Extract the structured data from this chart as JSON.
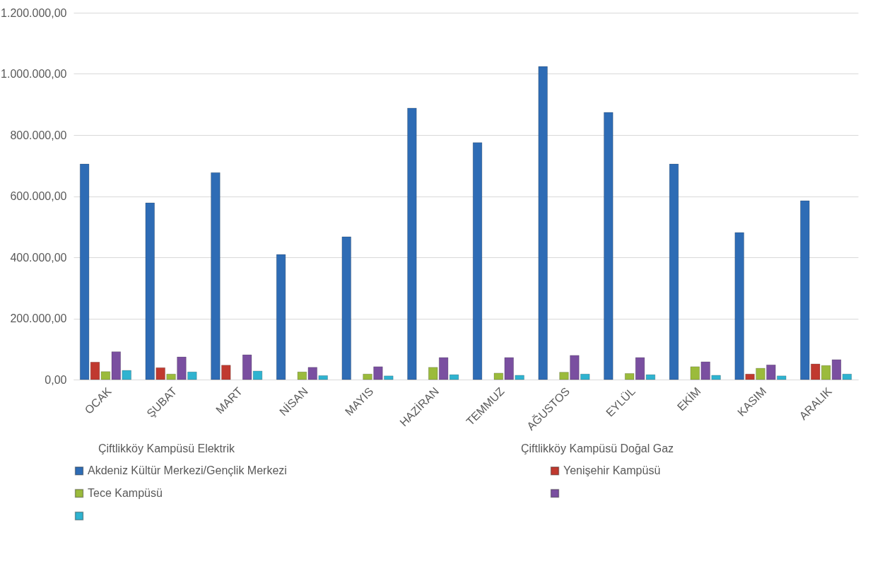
{
  "chart_data": {
    "type": "bar",
    "categories": [
      "OCAK",
      "ŞUBAT",
      "MART",
      "NİSAN",
      "MAYIS",
      "HAZİRAN",
      "TEMMUZ",
      "AĞUSTOS",
      "EYLÜL",
      "EKİM",
      "KASIM",
      "ARALIK"
    ],
    "series": [
      {
        "name": "Akdeniz Kültür Merkezi/Gençlik Merkezi",
        "color": "#2e6cb5",
        "values": [
          705000,
          578000,
          677000,
          409000,
          467000,
          888000,
          775000,
          1024000,
          874000,
          705000,
          481000,
          585000
        ]
      },
      {
        "name": "Yenişehir Kampüsü",
        "color": "#c0392f",
        "values": [
          57000,
          39000,
          47000,
          null,
          null,
          null,
          null,
          null,
          null,
          null,
          18000,
          51000
        ]
      },
      {
        "name": "Tece Kampüsü",
        "color": "#9bbb3c",
        "values": [
          26000,
          18000,
          null,
          25000,
          18000,
          40000,
          21000,
          24000,
          20000,
          42000,
          37000,
          46000
        ]
      },
      {
        "color": "#7a4fa0",
        "values": [
          91000,
          74000,
          81000,
          40000,
          42000,
          72000,
          72000,
          79000,
          72000,
          58000,
          48000,
          65000
        ]
      },
      {
        "color": "#2fb3d0",
        "values": [
          30000,
          25000,
          28000,
          13000,
          12000,
          16000,
          14000,
          18000,
          16000,
          14000,
          12000,
          18000
        ]
      }
    ],
    "annotations": [
      "Çiftlikköy Kampüsü Elektrik",
      "Çiftlikköy Kampüsü Doğal Gaz"
    ],
    "ylim": [
      0,
      1200000
    ],
    "yticks": [
      {
        "value": 0,
        "label": "0,00"
      },
      {
        "value": 200000,
        "label": "200.000,00"
      },
      {
        "value": 400000,
        "label": "400.000,00"
      },
      {
        "value": 600000,
        "label": "600.000,00"
      },
      {
        "value": 800000,
        "label": "800.000,00"
      },
      {
        "value": 1000000,
        "label": "1.000.000,00"
      },
      {
        "value": 1200000,
        "label": "1.200.000,00"
      }
    ],
    "grid": "y",
    "legend": "bottom"
  }
}
